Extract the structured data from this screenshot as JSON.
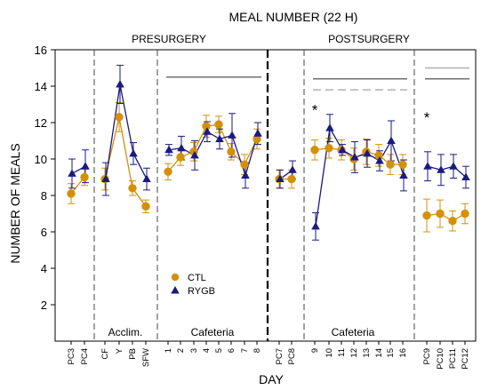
{
  "chart_data": {
    "type": "line",
    "title": "MEAL NUMBER (22 H)",
    "xlabel": "DAY",
    "ylabel": "NUMBER OF MEALS",
    "ylim": [
      0,
      16
    ],
    "yticks": [
      2,
      4,
      6,
      8,
      10,
      12,
      14,
      16
    ],
    "grid": false,
    "legend_position": "lower-left",
    "categories": [
      "PC3",
      "PC4",
      "CF",
      "Y",
      "PB",
      "SFW",
      "1",
      "2",
      "3",
      "4",
      "5",
      "6",
      "7",
      "8",
      "PC7",
      "PC8",
      "9",
      "10",
      "11",
      "12",
      "13",
      "14",
      "15",
      "16",
      "PC9",
      "PC10",
      "PC11",
      "PC12"
    ],
    "segments": [
      [
        0,
        1
      ],
      [
        2,
        3,
        4,
        5
      ],
      [
        6,
        7,
        8,
        9,
        10,
        11,
        12,
        13
      ],
      [
        14,
        15
      ],
      [
        16,
        17,
        18,
        19,
        20,
        21,
        22,
        23
      ],
      [
        24,
        25,
        26,
        27
      ]
    ],
    "series": [
      {
        "name": "CTL",
        "color": "#D4900C",
        "marker": "circle",
        "values": [
          8.1,
          9.0,
          8.9,
          12.3,
          8.4,
          7.4,
          9.3,
          10.1,
          10.4,
          11.8,
          11.9,
          10.4,
          9.7,
          11.1,
          8.9,
          8.9,
          10.5,
          10.6,
          10.5,
          10.0,
          10.4,
          10.2,
          9.7,
          9.7,
          6.9,
          7.0,
          6.6,
          7.0
        ],
        "errors": [
          0.55,
          0.45,
          0.6,
          0.8,
          0.4,
          0.35,
          0.45,
          0.45,
          0.5,
          0.6,
          0.45,
          0.45,
          0.55,
          0.55,
          0.5,
          0.5,
          0.55,
          0.55,
          0.55,
          0.6,
          0.7,
          0.6,
          0.55,
          0.55,
          0.9,
          0.75,
          0.55,
          0.55
        ]
      },
      {
        "name": "RYGB",
        "color": "#1A1A80",
        "marker": "triangle",
        "values": [
          9.2,
          9.6,
          8.9,
          14.1,
          10.3,
          8.9,
          10.5,
          10.6,
          10.2,
          11.5,
          11.1,
          11.3,
          9.1,
          11.4,
          8.9,
          9.4,
          6.3,
          11.7,
          10.5,
          10.1,
          10.3,
          9.9,
          11.0,
          9.1,
          9.6,
          9.4,
          9.6,
          9.0
        ],
        "errors": [
          0.8,
          0.9,
          0.9,
          1.05,
          0.6,
          0.6,
          0.3,
          0.65,
          0.8,
          0.55,
          0.55,
          1.2,
          0.7,
          0.6,
          0.5,
          0.5,
          0.75,
          0.75,
          0.3,
          0.85,
          0.75,
          0.55,
          1.1,
          0.85,
          0.8,
          0.85,
          0.65,
          0.6
        ]
      }
    ],
    "section_labels_top": [
      "PRESURGERY",
      "POSTSURGERY"
    ],
    "section_labels_bottom": [
      "Acclim.",
      "Cafeteria",
      "Cafeteria"
    ],
    "significance_marks": [
      {
        "symbol": "*",
        "category": "9",
        "color": "#1A1A80"
      },
      {
        "symbol": "*",
        "category": "PC9",
        "color": "#D4900C"
      }
    ],
    "significance_bars": [
      {
        "from": "1",
        "to": "8",
        "style": "solid",
        "color": "#707070",
        "y": 14.5
      },
      {
        "from": "9",
        "to": "16",
        "style": "solid",
        "color": "#707070",
        "y": 14.4
      },
      {
        "from": "9",
        "to": "16",
        "style": "dashed",
        "color": "#B0B0B0",
        "y": 13.8
      },
      {
        "from": "PC9",
        "to": "PC12",
        "style": "solid",
        "color": "#B0B0B0",
        "y": 15.0
      },
      {
        "from": "PC9",
        "to": "PC12",
        "style": "solid",
        "color": "#707070",
        "y": 14.4
      }
    ]
  }
}
